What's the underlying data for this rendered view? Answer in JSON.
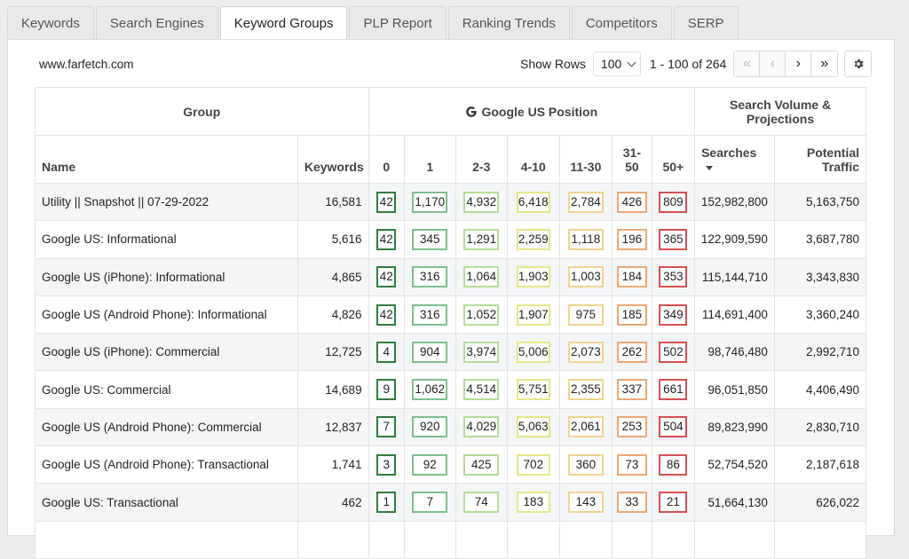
{
  "tabs": [
    {
      "label": "Keywords",
      "active": false
    },
    {
      "label": "Search Engines",
      "active": false
    },
    {
      "label": "Keyword Groups",
      "active": true
    },
    {
      "label": "PLP Report",
      "active": false
    },
    {
      "label": "Ranking Trends",
      "active": false
    },
    {
      "label": "Competitors",
      "active": false
    },
    {
      "label": "SERP",
      "active": false
    }
  ],
  "domain": "www.farfetch.com",
  "controls": {
    "show_rows_label": "Show Rows",
    "rows_value": "100",
    "range_text": "1 - 100 of 264",
    "pager": {
      "first": "«",
      "prev": "‹",
      "next": "›",
      "last": "»"
    }
  },
  "table": {
    "group_headers": {
      "group": "Group",
      "position": "Google US Position",
      "volume": "Search Volume & Projections"
    },
    "columns": {
      "name": "Name",
      "keywords": "Keywords",
      "p0": "0",
      "p1": "1",
      "p2_3": "2-3",
      "p4_10": "4-10",
      "p11_30": "11-30",
      "p31_50": "31-50",
      "p50": "50+",
      "searches": "Searches",
      "traffic": "Potential Traffic"
    },
    "rows": [
      {
        "name": "Utility || Snapshot || 07-29-2022",
        "keywords": "16,581",
        "p0": "42",
        "p1": "1,170",
        "p2_3": "4,932",
        "p4_10": "6,418",
        "p11_30": "2,784",
        "p31_50": "426",
        "p50": "809",
        "searches": "152,982,800",
        "traffic": "5,163,750"
      },
      {
        "name": "Google US: Informational",
        "keywords": "5,616",
        "p0": "42",
        "p1": "345",
        "p2_3": "1,291",
        "p4_10": "2,259",
        "p11_30": "1,118",
        "p31_50": "196",
        "p50": "365",
        "searches": "122,909,590",
        "traffic": "3,687,780"
      },
      {
        "name": "Google US (iPhone): Informational",
        "keywords": "4,865",
        "p0": "42",
        "p1": "316",
        "p2_3": "1,064",
        "p4_10": "1,903",
        "p11_30": "1,003",
        "p31_50": "184",
        "p50": "353",
        "searches": "115,144,710",
        "traffic": "3,343,830"
      },
      {
        "name": "Google US (Android Phone): Informational",
        "keywords": "4,826",
        "p0": "42",
        "p1": "316",
        "p2_3": "1,052",
        "p4_10": "1,907",
        "p11_30": "975",
        "p31_50": "185",
        "p50": "349",
        "searches": "114,691,400",
        "traffic": "3,360,240"
      },
      {
        "name": "Google US (iPhone): Commercial",
        "keywords": "12,725",
        "p0": "4",
        "p1": "904",
        "p2_3": "3,974",
        "p4_10": "5,006",
        "p11_30": "2,073",
        "p31_50": "262",
        "p50": "502",
        "searches": "98,746,480",
        "traffic": "2,992,710"
      },
      {
        "name": "Google US: Commercial",
        "keywords": "14,689",
        "p0": "9",
        "p1": "1,062",
        "p2_3": "4,514",
        "p4_10": "5,751",
        "p11_30": "2,355",
        "p31_50": "337",
        "p50": "661",
        "searches": "96,051,850",
        "traffic": "4,406,490"
      },
      {
        "name": "Google US (Android Phone): Commercial",
        "keywords": "12,837",
        "p0": "7",
        "p1": "920",
        "p2_3": "4,029",
        "p4_10": "5,063",
        "p11_30": "2,061",
        "p31_50": "253",
        "p50": "504",
        "searches": "89,823,990",
        "traffic": "2,830,710"
      },
      {
        "name": "Google US (Android Phone): Transactional",
        "keywords": "1,741",
        "p0": "3",
        "p1": "92",
        "p2_3": "425",
        "p4_10": "702",
        "p11_30": "360",
        "p31_50": "73",
        "p50": "86",
        "searches": "52,754,520",
        "traffic": "2,187,618"
      },
      {
        "name": "Google US: Transactional",
        "keywords": "462",
        "p0": "1",
        "p1": "7",
        "p2_3": "74",
        "p4_10": "183",
        "p11_30": "143",
        "p31_50": "33",
        "p50": "21",
        "searches": "51,664,130",
        "traffic": "626,022"
      },
      {
        "name": "",
        "keywords": "",
        "p0": "",
        "p1": "",
        "p2_3": "",
        "p4_10": "",
        "p11_30": "",
        "p31_50": "",
        "p50": "",
        "searches": "",
        "traffic": ""
      }
    ]
  },
  "colors": {
    "p0": "#2f7d3c",
    "p1": "#7fbf8c",
    "p2_3": "#b3dd9a",
    "p4_10": "#e6e788",
    "p11_30": "#f2d390",
    "p31_50": "#eda874",
    "p50": "#d94f4f"
  },
  "icons": {
    "google": "google-g-icon",
    "settings": "gear-icon",
    "sort": "sort-desc-icon"
  }
}
